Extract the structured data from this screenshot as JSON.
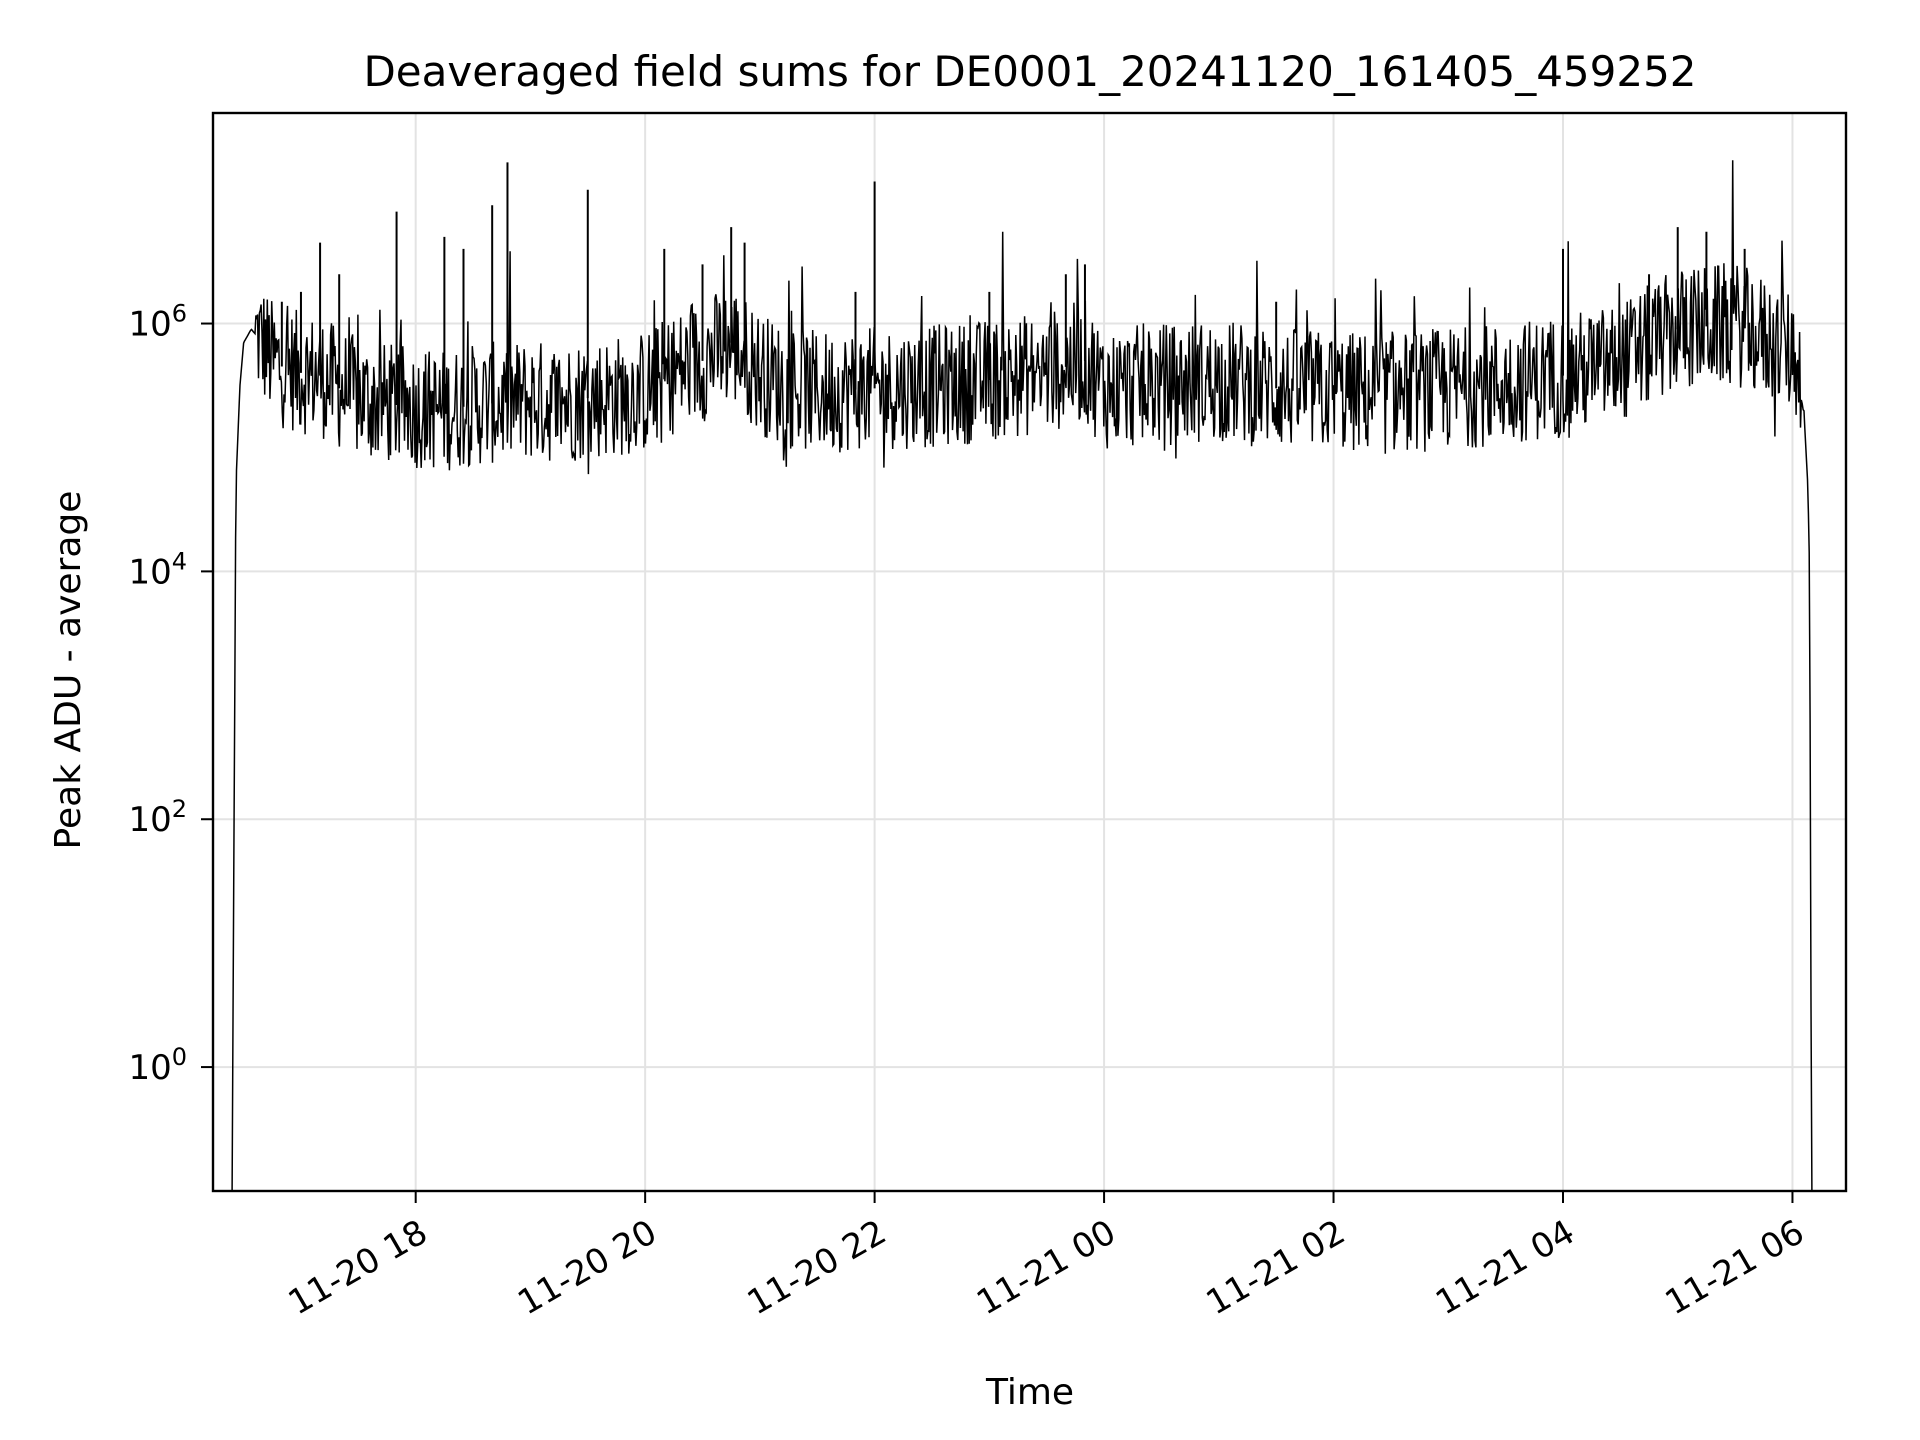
{
  "chart_data": {
    "type": "line",
    "title": "Deaveraged field sums for DE0001_20241120_161405_459252",
    "xlabel": "Time",
    "ylabel": "Peak ADU - average",
    "yscale": "log",
    "ylim": [
      0.1,
      50000000
    ],
    "xlim": [
      "2024-11-20 16:14",
      "2024-11-21 06:28"
    ],
    "x_ticks": [
      {
        "value": "2024-11-20 18:00",
        "label": "11-20 18"
      },
      {
        "value": "2024-11-20 20:00",
        "label": "11-20 20"
      },
      {
        "value": "2024-11-20 22:00",
        "label": "11-20 22"
      },
      {
        "value": "2024-11-21 00:00",
        "label": "11-21 00"
      },
      {
        "value": "2024-11-21 02:00",
        "label": "11-21 02"
      },
      {
        "value": "2024-11-21 04:00",
        "label": "11-21 04"
      },
      {
        "value": "2024-11-21 06:00",
        "label": "11-21 06"
      }
    ],
    "y_ticks": [
      {
        "value": 1,
        "base": "10",
        "exp": "0"
      },
      {
        "value": 100,
        "base": "10",
        "exp": "2"
      },
      {
        "value": 10000,
        "base": "10",
        "exp": "4"
      },
      {
        "value": 1000000,
        "base": "10",
        "exp": "6"
      }
    ],
    "grid": true,
    "line_color": "#000000",
    "series": [
      {
        "x": [
          "2024-11-20 16:24",
          "2024-11-20 16:25",
          "2024-11-20 16:26",
          "2024-11-20 16:28",
          "2024-11-20 16:30",
          "2024-11-20 16:34",
          "2024-11-20 16:40",
          "2024-11-20 16:45",
          "2024-11-20 16:50",
          "2024-11-20 17:00",
          "2024-11-20 17:10",
          "2024-11-20 17:20",
          "2024-11-20 17:30",
          "2024-11-20 17:40",
          "2024-11-20 17:50",
          "2024-11-20 18:00",
          "2024-11-20 18:15",
          "2024-11-20 18:30",
          "2024-11-20 18:45",
          "2024-11-20 19:00",
          "2024-11-20 19:15",
          "2024-11-20 19:30",
          "2024-11-20 19:45",
          "2024-11-20 20:00",
          "2024-11-20 20:15",
          "2024-11-20 20:30",
          "2024-11-20 20:45",
          "2024-11-20 21:00",
          "2024-11-20 21:15",
          "2024-11-20 21:30",
          "2024-11-20 21:45",
          "2024-11-20 22:00",
          "2024-11-20 22:30",
          "2024-11-20 23:00",
          "2024-11-20 23:30",
          "2024-11-20 23:50",
          "2024-11-21 00:00",
          "2024-11-21 00:30",
          "2024-11-21 01:00",
          "2024-11-21 01:30",
          "2024-11-21 02:00",
          "2024-11-21 02:30",
          "2024-11-21 03:00",
          "2024-11-21 03:30",
          "2024-11-21 04:00",
          "2024-11-21 04:30",
          "2024-11-21 05:00",
          "2024-11-21 05:30",
          "2024-11-21 05:50",
          "2024-11-21 06:00",
          "2024-11-21 06:05",
          "2024-11-21 06:08",
          "2024-11-21 06:09",
          "2024-11-21 06:10",
          "2024-11-21 06:11",
          "2024-11-21 06:12"
        ],
        "y": [
          0.1,
          100,
          50000,
          300000,
          700000,
          900000,
          700000,
          500000,
          450000,
          400000,
          380000,
          300000,
          250000,
          230000,
          220000,
          210000,
          200000,
          220000,
          230000,
          240000,
          230000,
          250000,
          260000,
          280000,
          400000,
          500000,
          700000,
          400000,
          300000,
          280000,
          290000,
          300000,
          310000,
          350000,
          400000,
          500000,
          300000,
          320000,
          350000,
          300000,
          280000,
          270000,
          300000,
          330000,
          380000,
          480000,
          900000,
          1000000,
          700000,
          600000,
          400000,
          50000,
          10000,
          0.1,
          0.1,
          0.1
        ]
      }
    ],
    "spikes": [
      {
        "x": "2024-11-20 16:50",
        "y": 1500000
      },
      {
        "x": "2024-11-20 17:00",
        "y": 1800000
      },
      {
        "x": "2024-11-20 17:10",
        "y": 4500000
      },
      {
        "x": "2024-11-20 17:20",
        "y": 2500000
      },
      {
        "x": "2024-11-20 17:50",
        "y": 8000000
      },
      {
        "x": "2024-11-20 18:15",
        "y": 5000000
      },
      {
        "x": "2024-11-20 18:25",
        "y": 4000000
      },
      {
        "x": "2024-11-20 18:40",
        "y": 9000000
      },
      {
        "x": "2024-11-20 18:48",
        "y": 20000000
      },
      {
        "x": "2024-11-20 19:30",
        "y": 12000000
      },
      {
        "x": "2024-11-20 20:10",
        "y": 4000000
      },
      {
        "x": "2024-11-20 20:30",
        "y": 3000000
      },
      {
        "x": "2024-11-20 20:45",
        "y": 6000000
      },
      {
        "x": "2024-11-20 20:52",
        "y": 4500000
      },
      {
        "x": "2024-11-20 21:50",
        "y": 1800000
      },
      {
        "x": "2024-11-20 22:00",
        "y": 14000000
      },
      {
        "x": "2024-11-20 23:00",
        "y": 1800000
      },
      {
        "x": "2024-11-20 23:40",
        "y": 2500000
      },
      {
        "x": "2024-11-20 23:50",
        "y": 3000000
      },
      {
        "x": "2024-11-21 01:30",
        "y": 1500000
      },
      {
        "x": "2024-11-21 04:00",
        "y": 4000000
      },
      {
        "x": "2024-11-21 04:45",
        "y": 2500000
      },
      {
        "x": "2024-11-21 05:00",
        "y": 6000000
      },
      {
        "x": "2024-11-21 05:15",
        "y": 5500000
      },
      {
        "x": "2024-11-21 05:35",
        "y": 4000000
      }
    ]
  }
}
